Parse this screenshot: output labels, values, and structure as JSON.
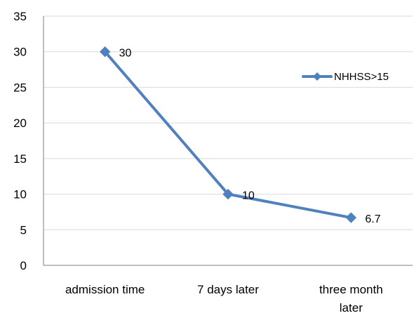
{
  "chart_data": {
    "type": "line",
    "categories": [
      "admission time",
      "7 days later",
      "three month later"
    ],
    "category_lines": [
      [
        "admission time"
      ],
      [
        "7 days later"
      ],
      [
        "three month",
        "later"
      ]
    ],
    "series": [
      {
        "name": "NHHSS>15",
        "values": [
          30,
          10,
          6.7
        ],
        "data_labels": [
          "30",
          "10",
          "6.7"
        ]
      }
    ],
    "ylim": [
      0,
      35
    ],
    "y_ticks": [
      "0",
      "5",
      "10",
      "15",
      "20",
      "25",
      "30",
      "35"
    ],
    "y_tick_values": [
      0,
      5,
      10,
      15,
      20,
      25,
      30,
      35
    ],
    "grid": true,
    "legend_position": "right",
    "colors": {
      "series": "#4f81bd",
      "grid": "#d9d9d9",
      "axis": "#7f7f7f"
    },
    "marker": "diamond",
    "title": "",
    "xlabel": "",
    "ylabel": ""
  }
}
